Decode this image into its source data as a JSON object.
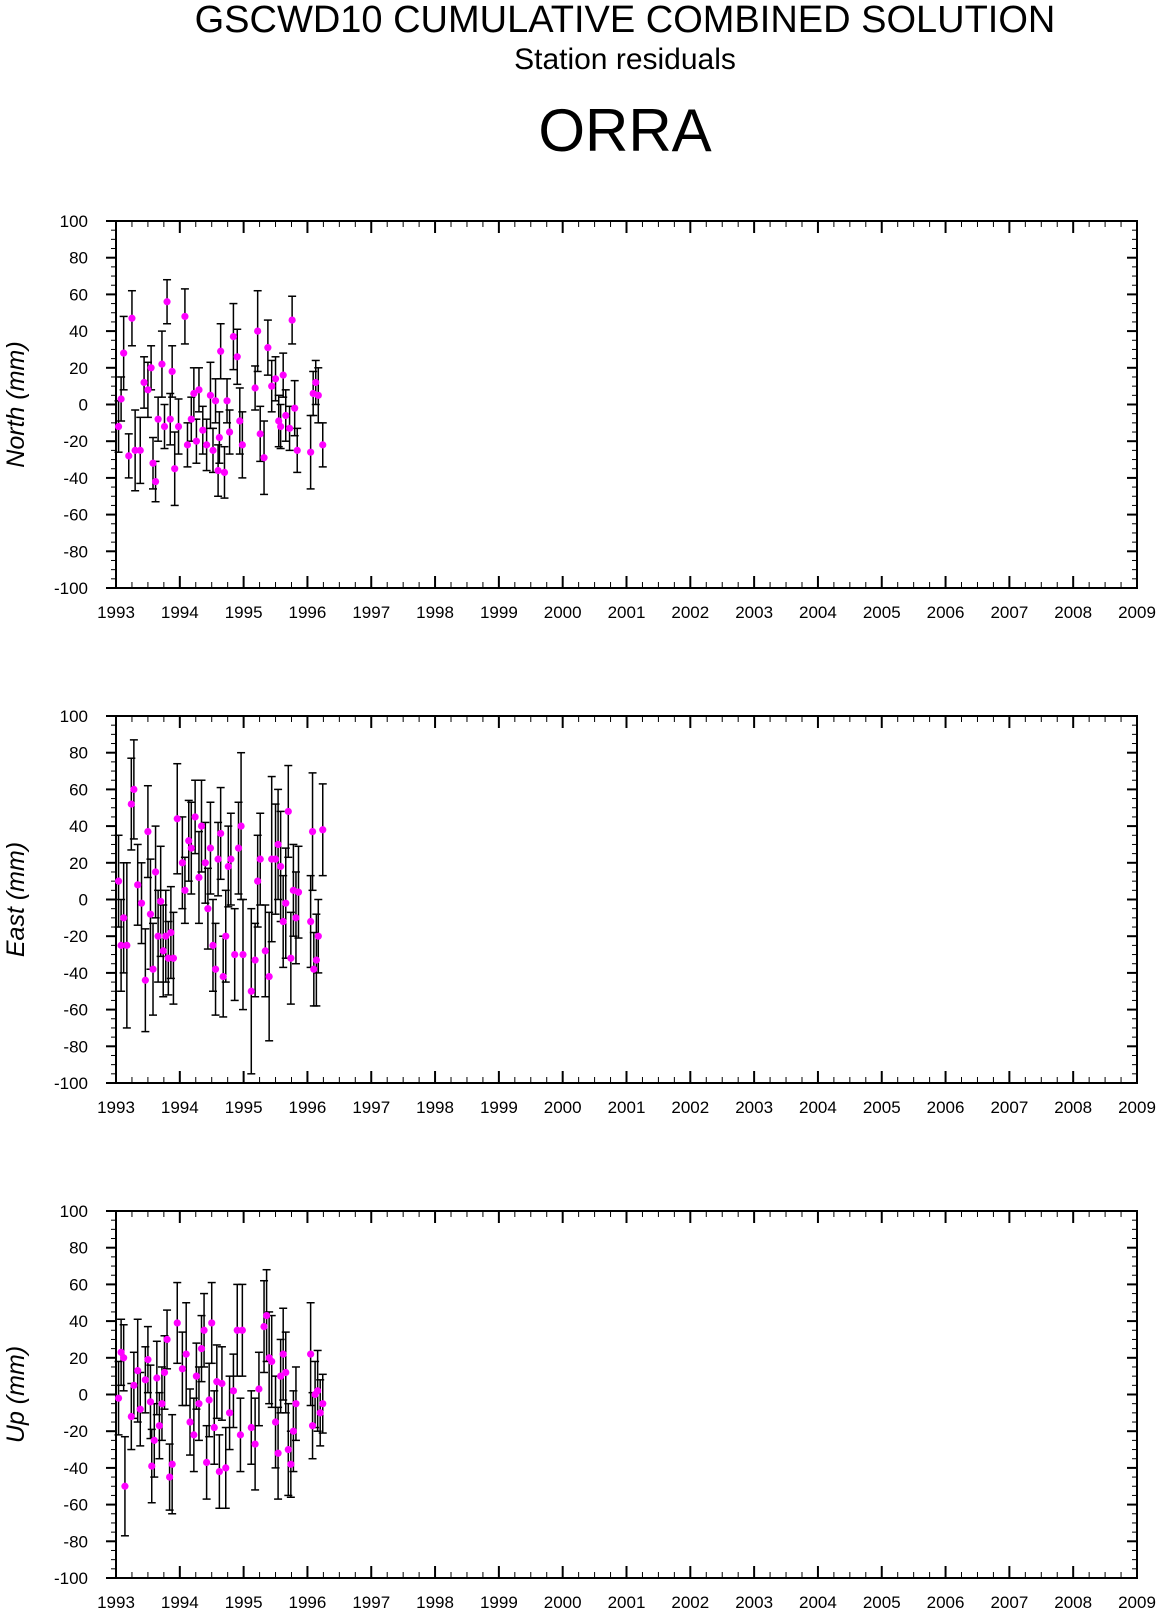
{
  "header": {
    "title": "GSCWD10 CUMULATIVE COMBINED SOLUTION",
    "subtitle": "Station residuals",
    "station": "ORRA"
  },
  "colors": {
    "point": "#ff00ff",
    "errorbar": "#000000",
    "axis": "#000000"
  },
  "chart_data": [
    {
      "type": "scatter",
      "component": "north",
      "ylabel": "North (mm)",
      "xlim": [
        1993,
        2009
      ],
      "ylim": [
        -100,
        100
      ],
      "x_ticks": [
        "1993",
        "1994",
        "1995",
        "1996",
        "1997",
        "1998",
        "1999",
        "2000",
        "2001",
        "2002",
        "2003",
        "2004",
        "2005",
        "2006",
        "2007",
        "2008",
        "2009"
      ],
      "y_ticks": [
        "100",
        "80",
        "60",
        "40",
        "20",
        "0",
        "-20",
        "-40",
        "-60",
        "-80",
        "-100"
      ],
      "grid": false,
      "points": [
        {
          "x": 1993.04,
          "y": -12,
          "err": 14
        },
        {
          "x": 1993.08,
          "y": 3,
          "err": 12
        },
        {
          "x": 1993.12,
          "y": 28,
          "err": 20
        },
        {
          "x": 1993.2,
          "y": -28,
          "err": 12
        },
        {
          "x": 1993.25,
          "y": 47,
          "err": 15
        },
        {
          "x": 1993.3,
          "y": -25,
          "err": 22
        },
        {
          "x": 1993.38,
          "y": -25,
          "err": 18
        },
        {
          "x": 1993.44,
          "y": 12,
          "err": 14
        },
        {
          "x": 1993.5,
          "y": 8,
          "err": 15
        },
        {
          "x": 1993.55,
          "y": 20,
          "err": 12
        },
        {
          "x": 1993.58,
          "y": -32,
          "err": 14
        },
        {
          "x": 1993.62,
          "y": -42,
          "err": 11
        },
        {
          "x": 1993.66,
          "y": -8,
          "err": 12
        },
        {
          "x": 1993.72,
          "y": 22,
          "err": 18
        },
        {
          "x": 1993.76,
          "y": -12,
          "err": 12
        },
        {
          "x": 1993.8,
          "y": 56,
          "err": 12
        },
        {
          "x": 1993.85,
          "y": -8,
          "err": 14
        },
        {
          "x": 1993.88,
          "y": 18,
          "err": 14
        },
        {
          "x": 1993.92,
          "y": -35,
          "err": 20
        },
        {
          "x": 1993.98,
          "y": -12,
          "err": 15
        },
        {
          "x": 1994.08,
          "y": 48,
          "err": 15
        },
        {
          "x": 1994.12,
          "y": -22,
          "err": 12
        },
        {
          "x": 1994.18,
          "y": -8,
          "err": 12
        },
        {
          "x": 1994.22,
          "y": 6,
          "err": 14
        },
        {
          "x": 1994.26,
          "y": -20,
          "err": 12
        },
        {
          "x": 1994.3,
          "y": 8,
          "err": 12
        },
        {
          "x": 1994.36,
          "y": -14,
          "err": 13
        },
        {
          "x": 1994.42,
          "y": -22,
          "err": 14
        },
        {
          "x": 1994.48,
          "y": 5,
          "err": 18
        },
        {
          "x": 1994.52,
          "y": -25,
          "err": 12
        },
        {
          "x": 1994.56,
          "y": 2,
          "err": 12
        },
        {
          "x": 1994.6,
          "y": -36,
          "err": 14
        },
        {
          "x": 1994.62,
          "y": -18,
          "err": 14
        },
        {
          "x": 1994.64,
          "y": 29,
          "err": 15
        },
        {
          "x": 1994.7,
          "y": -37,
          "err": 14
        },
        {
          "x": 1994.74,
          "y": 2,
          "err": 12
        },
        {
          "x": 1994.78,
          "y": -15,
          "err": 12
        },
        {
          "x": 1994.84,
          "y": 37,
          "err": 18
        },
        {
          "x": 1994.9,
          "y": 26,
          "err": 15
        },
        {
          "x": 1994.94,
          "y": -9,
          "err": 18
        },
        {
          "x": 1994.98,
          "y": -22,
          "err": 18
        },
        {
          "x": 1995.18,
          "y": 9,
          "err": 12
        },
        {
          "x": 1995.22,
          "y": 40,
          "err": 22
        },
        {
          "x": 1995.26,
          "y": -16,
          "err": 15
        },
        {
          "x": 1995.32,
          "y": -29,
          "err": 20
        },
        {
          "x": 1995.38,
          "y": 31,
          "err": 15
        },
        {
          "x": 1995.44,
          "y": 10,
          "err": 14
        },
        {
          "x": 1995.5,
          "y": 14,
          "err": 12
        },
        {
          "x": 1995.55,
          "y": -9,
          "err": 14
        },
        {
          "x": 1995.58,
          "y": -12,
          "err": 12
        },
        {
          "x": 1995.62,
          "y": 16,
          "err": 12
        },
        {
          "x": 1995.66,
          "y": -6,
          "err": 14
        },
        {
          "x": 1995.72,
          "y": -13,
          "err": 12
        },
        {
          "x": 1995.76,
          "y": 46,
          "err": 13
        },
        {
          "x": 1995.8,
          "y": -2,
          "err": 15
        },
        {
          "x": 1995.84,
          "y": -25,
          "err": 12
        },
        {
          "x": 1996.05,
          "y": -26,
          "err": 20
        },
        {
          "x": 1996.09,
          "y": 6,
          "err": 12
        },
        {
          "x": 1996.13,
          "y": 12,
          "err": 12
        },
        {
          "x": 1996.17,
          "y": 5,
          "err": 15
        },
        {
          "x": 1996.24,
          "y": -22,
          "err": 12
        }
      ]
    },
    {
      "type": "scatter",
      "component": "east",
      "ylabel": "East (mm)",
      "xlim": [
        1993,
        2009
      ],
      "ylim": [
        -100,
        100
      ],
      "x_ticks": [
        "1993",
        "1994",
        "1995",
        "1996",
        "1997",
        "1998",
        "1999",
        "2000",
        "2001",
        "2002",
        "2003",
        "2004",
        "2005",
        "2006",
        "2007",
        "2008",
        "2009"
      ],
      "y_ticks": [
        "100",
        "80",
        "60",
        "40",
        "20",
        "0",
        "-20",
        "-40",
        "-60",
        "-80",
        "-100"
      ],
      "grid": false,
      "points": [
        {
          "x": 1993.04,
          "y": 10,
          "err": 25
        },
        {
          "x": 1993.08,
          "y": -25,
          "err": 25
        },
        {
          "x": 1993.12,
          "y": -10,
          "err": 30
        },
        {
          "x": 1993.17,
          "y": -25,
          "err": 45
        },
        {
          "x": 1993.24,
          "y": 52,
          "err": 25
        },
        {
          "x": 1993.28,
          "y": 60,
          "err": 27
        },
        {
          "x": 1993.34,
          "y": 8,
          "err": 22
        },
        {
          "x": 1993.4,
          "y": -2,
          "err": 22
        },
        {
          "x": 1993.46,
          "y": -44,
          "err": 28
        },
        {
          "x": 1993.5,
          "y": 37,
          "err": 25
        },
        {
          "x": 1993.54,
          "y": -8,
          "err": 30
        },
        {
          "x": 1993.58,
          "y": -38,
          "err": 25
        },
        {
          "x": 1993.62,
          "y": 15,
          "err": 25
        },
        {
          "x": 1993.66,
          "y": -20,
          "err": 25
        },
        {
          "x": 1993.7,
          "y": -1,
          "err": 30
        },
        {
          "x": 1993.74,
          "y": -28,
          "err": 25
        },
        {
          "x": 1993.78,
          "y": -20,
          "err": 25
        },
        {
          "x": 1993.82,
          "y": -32,
          "err": 20
        },
        {
          "x": 1993.86,
          "y": -18,
          "err": 25
        },
        {
          "x": 1993.9,
          "y": -32,
          "err": 25
        },
        {
          "x": 1993.96,
          "y": 44,
          "err": 30
        },
        {
          "x": 1994.04,
          "y": 20,
          "err": 25
        },
        {
          "x": 1994.08,
          "y": 5,
          "err": 18
        },
        {
          "x": 1994.14,
          "y": 32,
          "err": 22
        },
        {
          "x": 1994.18,
          "y": 28,
          "err": 25
        },
        {
          "x": 1994.24,
          "y": 45,
          "err": 20
        },
        {
          "x": 1994.3,
          "y": 12,
          "err": 25
        },
        {
          "x": 1994.34,
          "y": 40,
          "err": 25
        },
        {
          "x": 1994.4,
          "y": 20,
          "err": 22
        },
        {
          "x": 1994.44,
          "y": -5,
          "err": 22
        },
        {
          "x": 1994.48,
          "y": 28,
          "err": 25
        },
        {
          "x": 1994.52,
          "y": -25,
          "err": 25
        },
        {
          "x": 1994.56,
          "y": -38,
          "err": 25
        },
        {
          "x": 1994.6,
          "y": 22,
          "err": 20
        },
        {
          "x": 1994.64,
          "y": 36,
          "err": 25
        },
        {
          "x": 1994.68,
          "y": -42,
          "err": 22
        },
        {
          "x": 1994.72,
          "y": -20,
          "err": 25
        },
        {
          "x": 1994.76,
          "y": 18,
          "err": 22
        },
        {
          "x": 1994.8,
          "y": 22,
          "err": 25
        },
        {
          "x": 1994.86,
          "y": -30,
          "err": 25
        },
        {
          "x": 1994.92,
          "y": 28,
          "err": 25
        },
        {
          "x": 1994.96,
          "y": 40,
          "err": 40
        },
        {
          "x": 1994.99,
          "y": -30,
          "err": 30
        },
        {
          "x": 1995.12,
          "y": -50,
          "err": 45
        },
        {
          "x": 1995.18,
          "y": -33,
          "err": 20
        },
        {
          "x": 1995.22,
          "y": 10,
          "err": 25
        },
        {
          "x": 1995.26,
          "y": 22,
          "err": 25
        },
        {
          "x": 1995.34,
          "y": -28,
          "err": 25
        },
        {
          "x": 1995.4,
          "y": -42,
          "err": 35
        },
        {
          "x": 1995.44,
          "y": 22,
          "err": 45
        },
        {
          "x": 1995.5,
          "y": 22,
          "err": 30
        },
        {
          "x": 1995.54,
          "y": 30,
          "err": 30
        },
        {
          "x": 1995.58,
          "y": 18,
          "err": 30
        },
        {
          "x": 1995.62,
          "y": -12,
          "err": 25
        },
        {
          "x": 1995.66,
          "y": -2,
          "err": 30
        },
        {
          "x": 1995.7,
          "y": 48,
          "err": 25
        },
        {
          "x": 1995.74,
          "y": -32,
          "err": 25
        },
        {
          "x": 1995.78,
          "y": 5,
          "err": 25
        },
        {
          "x": 1995.82,
          "y": -10,
          "err": 25
        },
        {
          "x": 1995.86,
          "y": 4,
          "err": 25
        },
        {
          "x": 1996.05,
          "y": -12,
          "err": 25
        },
        {
          "x": 1996.08,
          "y": 37,
          "err": 32
        },
        {
          "x": 1996.1,
          "y": -38,
          "err": 20
        },
        {
          "x": 1996.14,
          "y": -33,
          "err": 25
        },
        {
          "x": 1996.17,
          "y": -20,
          "err": 20
        },
        {
          "x": 1996.24,
          "y": 38,
          "err": 25
        }
      ]
    },
    {
      "type": "scatter",
      "component": "up",
      "ylabel": "Up (mm)",
      "xlim": [
        1993,
        2009
      ],
      "ylim": [
        -100,
        100
      ],
      "x_ticks": [
        "1993",
        "1994",
        "1995",
        "1996",
        "1997",
        "1998",
        "1999",
        "2000",
        "2001",
        "2002",
        "2003",
        "2004",
        "2005",
        "2006",
        "2007",
        "2008",
        "2009"
      ],
      "y_ticks": [
        "100",
        "80",
        "60",
        "40",
        "20",
        "0",
        "-20",
        "-40",
        "-60",
        "-80",
        "-100"
      ],
      "grid": false,
      "points": [
        {
          "x": 1993.04,
          "y": -2,
          "err": 20
        },
        {
          "x": 1993.08,
          "y": 23,
          "err": 18
        },
        {
          "x": 1993.12,
          "y": 20,
          "err": 18
        },
        {
          "x": 1993.14,
          "y": -50,
          "err": 27
        },
        {
          "x": 1993.24,
          "y": -12,
          "err": 18
        },
        {
          "x": 1993.28,
          "y": 5,
          "err": 18
        },
        {
          "x": 1993.34,
          "y": 13,
          "err": 28
        },
        {
          "x": 1993.38,
          "y": -8,
          "err": 20
        },
        {
          "x": 1993.46,
          "y": 8,
          "err": 18
        },
        {
          "x": 1993.5,
          "y": 19,
          "err": 18
        },
        {
          "x": 1993.54,
          "y": -4,
          "err": 20
        },
        {
          "x": 1993.56,
          "y": -39,
          "err": 20
        },
        {
          "x": 1993.6,
          "y": -25,
          "err": 20
        },
        {
          "x": 1993.64,
          "y": 9,
          "err": 20
        },
        {
          "x": 1993.68,
          "y": -17,
          "err": 18
        },
        {
          "x": 1993.72,
          "y": -5,
          "err": 20
        },
        {
          "x": 1993.76,
          "y": 12,
          "err": 20
        },
        {
          "x": 1993.8,
          "y": 30,
          "err": 16
        },
        {
          "x": 1993.84,
          "y": -45,
          "err": 18
        },
        {
          "x": 1993.88,
          "y": -38,
          "err": 27
        },
        {
          "x": 1993.96,
          "y": 39,
          "err": 22
        },
        {
          "x": 1994.04,
          "y": 14,
          "err": 20
        },
        {
          "x": 1994.1,
          "y": 22,
          "err": 28
        },
        {
          "x": 1994.16,
          "y": -15,
          "err": 18
        },
        {
          "x": 1994.22,
          "y": -22,
          "err": 20
        },
        {
          "x": 1994.26,
          "y": 10,
          "err": 18
        },
        {
          "x": 1994.3,
          "y": -5,
          "err": 20
        },
        {
          "x": 1994.34,
          "y": 25,
          "err": 18
        },
        {
          "x": 1994.38,
          "y": 35,
          "err": 20
        },
        {
          "x": 1994.42,
          "y": -37,
          "err": 20
        },
        {
          "x": 1994.46,
          "y": -3,
          "err": 20
        },
        {
          "x": 1994.5,
          "y": 39,
          "err": 22
        },
        {
          "x": 1994.54,
          "y": -18,
          "err": 20
        },
        {
          "x": 1994.58,
          "y": 7,
          "err": 20
        },
        {
          "x": 1994.62,
          "y": -42,
          "err": 20
        },
        {
          "x": 1994.66,
          "y": 6,
          "err": 20
        },
        {
          "x": 1994.72,
          "y": -40,
          "err": 22
        },
        {
          "x": 1994.78,
          "y": -10,
          "err": 20
        },
        {
          "x": 1994.84,
          "y": 2,
          "err": 20
        },
        {
          "x": 1994.9,
          "y": 35,
          "err": 25
        },
        {
          "x": 1994.95,
          "y": -22,
          "err": 20
        },
        {
          "x": 1994.98,
          "y": 35,
          "err": 25
        },
        {
          "x": 1995.12,
          "y": -18,
          "err": 20
        },
        {
          "x": 1995.18,
          "y": -27,
          "err": 25
        },
        {
          "x": 1995.24,
          "y": 3,
          "err": 20
        },
        {
          "x": 1995.32,
          "y": 37,
          "err": 25
        },
        {
          "x": 1995.36,
          "y": 43,
          "err": 25
        },
        {
          "x": 1995.4,
          "y": 20,
          "err": 25
        },
        {
          "x": 1995.44,
          "y": 18,
          "err": 25
        },
        {
          "x": 1995.5,
          "y": -15,
          "err": 25
        },
        {
          "x": 1995.54,
          "y": -32,
          "err": 25
        },
        {
          "x": 1995.58,
          "y": 10,
          "err": 20
        },
        {
          "x": 1995.62,
          "y": 22,
          "err": 25
        },
        {
          "x": 1995.66,
          "y": 12,
          "err": 22
        },
        {
          "x": 1995.7,
          "y": -30,
          "err": 25
        },
        {
          "x": 1995.74,
          "y": -38,
          "err": 18
        },
        {
          "x": 1995.78,
          "y": -20,
          "err": 22
        },
        {
          "x": 1995.82,
          "y": -5,
          "err": 20
        },
        {
          "x": 1996.05,
          "y": 22,
          "err": 28
        },
        {
          "x": 1996.08,
          "y": -17,
          "err": 18
        },
        {
          "x": 1996.12,
          "y": 0,
          "err": 18
        },
        {
          "x": 1996.16,
          "y": 2,
          "err": 22
        },
        {
          "x": 1996.2,
          "y": -10,
          "err": 18
        },
        {
          "x": 1996.24,
          "y": -5,
          "err": 16
        }
      ]
    }
  ]
}
